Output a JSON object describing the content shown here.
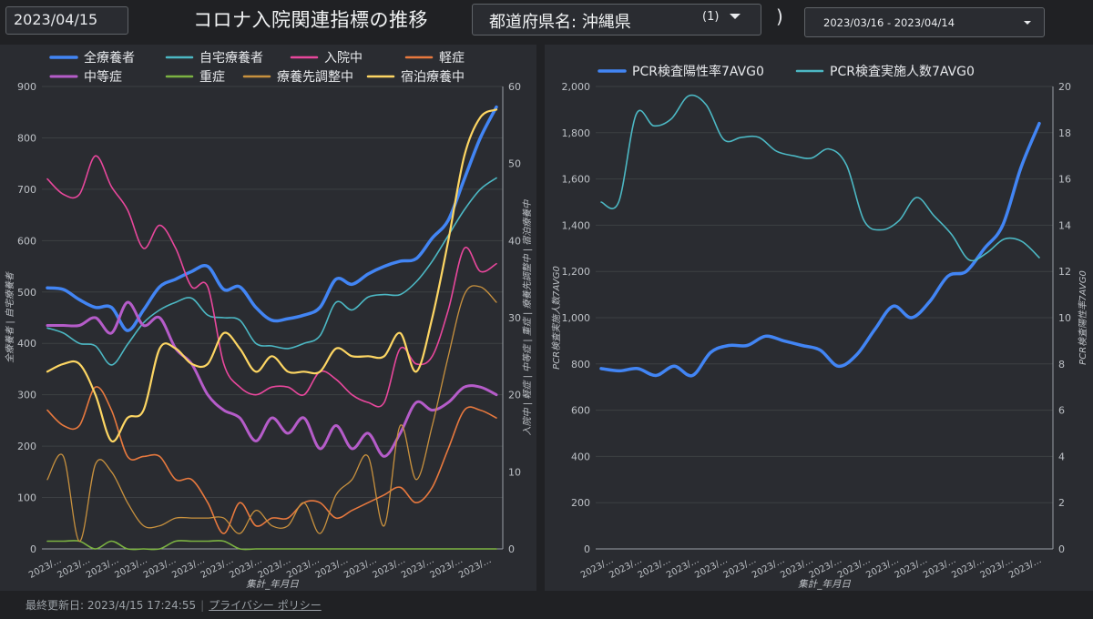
{
  "header": {
    "date": "2023/04/15",
    "title": "コロナ入院関連指標の推移",
    "pref_label": "都道府県名: 沖縄県",
    "pref_count": "(1)",
    "paren": ")",
    "date_range": "2023/03/16 - 2023/04/14"
  },
  "footer": {
    "updated": "最終更新日: 2023/4/15 17:24:55",
    "privacy": "プライバシー ポリシー"
  },
  "chart_data": [
    {
      "type": "line",
      "xlabel": "集計_年月日",
      "x_tick_labels": [
        "2023/…",
        "2023/…",
        "2023/…",
        "2023/…",
        "2023/…",
        "2023/…",
        "2023/…",
        "2023/…",
        "2023/…",
        "2023/…",
        "2023/…",
        "2023/…",
        "2023/…",
        "2023/…",
        "2023/…",
        "2023/…"
      ],
      "ylabel_left": "全療養者 | 自宅療養者",
      "ylabel_right": "入院中 | 軽症 | 中等症 | 重症 | 療養先調整中 | 宿泊療養中",
      "ylim_left": [
        0,
        900
      ],
      "ylim_right": [
        0,
        60
      ],
      "yticks_left": [
        0,
        100,
        200,
        300,
        400,
        500,
        600,
        700,
        800,
        900
      ],
      "yticks_right": [
        0,
        10,
        20,
        30,
        40,
        50,
        60
      ],
      "legend_position": "top",
      "grid": true,
      "series": [
        {
          "name": "全療養者",
          "axis": "left",
          "color": "#4285f4",
          "width": 3.5,
          "values": [
            508,
            505,
            485,
            470,
            470,
            425,
            465,
            510,
            525,
            540,
            550,
            505,
            510,
            470,
            445,
            448,
            455,
            470,
            525,
            515,
            535,
            550,
            560,
            565,
            605,
            640,
            720,
            800,
            860
          ]
        },
        {
          "name": "自宅療養者",
          "axis": "left",
          "color": "#4cb8c4",
          "width": 1.6,
          "values": [
            430,
            420,
            400,
            395,
            358,
            398,
            440,
            465,
            480,
            488,
            455,
            450,
            445,
            400,
            395,
            390,
            400,
            415,
            480,
            465,
            490,
            495,
            495,
            520,
            560,
            610,
            660,
            700,
            722
          ]
        },
        {
          "name": "入院中",
          "axis": "right",
          "color": "#e8479c",
          "width": 1.6,
          "values": [
            48,
            46,
            46,
            51,
            47,
            44,
            39,
            42,
            39,
            34,
            34,
            24,
            21,
            20,
            21,
            21,
            20,
            23,
            22,
            20,
            19,
            19,
            26,
            24,
            25,
            31,
            39,
            36,
            37
          ]
        },
        {
          "name": "軽症",
          "axis": "right",
          "color": "#e8793e",
          "width": 1.6,
          "values": [
            18,
            16,
            16,
            21,
            18,
            12,
            12,
            12,
            9,
            9,
            6,
            2,
            6,
            3,
            4,
            4,
            6,
            6,
            4,
            5,
            6,
            7,
            8,
            6,
            8,
            13,
            18,
            18,
            17
          ]
        },
        {
          "name": "中等症",
          "axis": "right",
          "color": "#b55cc9",
          "width": 3,
          "values": [
            29,
            29,
            29,
            30,
            28,
            32,
            29,
            30,
            26,
            24,
            20,
            18,
            17,
            14,
            17,
            15,
            17,
            13,
            16,
            13,
            15,
            12,
            15,
            19,
            18,
            19,
            21,
            21,
            20
          ]
        },
        {
          "name": "重症",
          "axis": "right",
          "color": "#7cb342",
          "width": 1.6,
          "values": [
            1,
            1,
            1,
            0,
            1,
            0,
            0,
            0,
            1,
            1,
            1,
            1,
            0,
            0,
            0,
            0,
            0,
            0,
            0,
            0,
            0,
            0,
            0,
            0,
            0,
            0,
            0,
            0,
            0
          ]
        },
        {
          "name": "療養先調整中",
          "axis": "right",
          "color": "#c8913e",
          "width": 1.3,
          "values": [
            9,
            12,
            1,
            11,
            10,
            6,
            3,
            3,
            4,
            4,
            4,
            4,
            2,
            5,
            3,
            3,
            6,
            2,
            7,
            9,
            12,
            3,
            16,
            9,
            16,
            25,
            33,
            34,
            32
          ]
        },
        {
          "name": "宿泊療養中",
          "axis": "right",
          "color": "#fdd663",
          "width": 2.2,
          "values": [
            23,
            24,
            24,
            20,
            14,
            17,
            18,
            26,
            26,
            24,
            24,
            28,
            26,
            23,
            25,
            23,
            23,
            23,
            26,
            25,
            25,
            25,
            28,
            23,
            30,
            40,
            51,
            56,
            57
          ]
        }
      ]
    },
    {
      "type": "line",
      "xlabel": "集計_年月日",
      "x_tick_labels": [
        "2023/…",
        "2023/…",
        "2023/…",
        "2023/…",
        "2023/…",
        "2023/…",
        "2023/…",
        "2023/…",
        "2023/…",
        "2023/…",
        "2023/…",
        "2023/…",
        "2023/…",
        "2023/…",
        "2023/…",
        "2023/…"
      ],
      "ylabel_left": "PCR検査実施人数7AVG0",
      "ylabel_right": "PCR検査陽性率7AVG0",
      "ylim_left": [
        0,
        2000
      ],
      "ylim_right": [
        0,
        20
      ],
      "yticks_left": [
        0,
        200,
        400,
        600,
        800,
        1000,
        1200,
        1400,
        1600,
        1800,
        2000
      ],
      "yticks_left_labels": [
        "0",
        "200",
        "400",
        "600",
        "800",
        "1,000",
        "1,200",
        "1,400",
        "1,600",
        "1,800",
        "2,000"
      ],
      "yticks_right": [
        0,
        2,
        4,
        6,
        8,
        10,
        12,
        14,
        16,
        18,
        20
      ],
      "legend_position": "top",
      "grid": true,
      "series": [
        {
          "name": "PCR検査陽性率7AVG0",
          "axis": "right",
          "color": "#4285f4",
          "width": 3.5,
          "values": [
            7.8,
            7.7,
            7.8,
            7.5,
            7.9,
            7.5,
            8.5,
            8.8,
            8.8,
            9.2,
            9.0,
            8.8,
            8.6,
            7.9,
            8.4,
            9.5,
            10.5,
            10.0,
            10.7,
            11.8,
            12.0,
            13.0,
            14.0,
            16.5,
            18.4
          ]
        },
        {
          "name": "PCR検査実施人数7AVG0",
          "axis": "left",
          "color": "#4cb8c4",
          "width": 1.6,
          "values": [
            1500,
            1500,
            1880,
            1830,
            1860,
            1960,
            1920,
            1770,
            1780,
            1780,
            1720,
            1700,
            1690,
            1730,
            1660,
            1420,
            1380,
            1420,
            1520,
            1440,
            1360,
            1250,
            1280,
            1340,
            1330,
            1260
          ]
        }
      ]
    }
  ]
}
